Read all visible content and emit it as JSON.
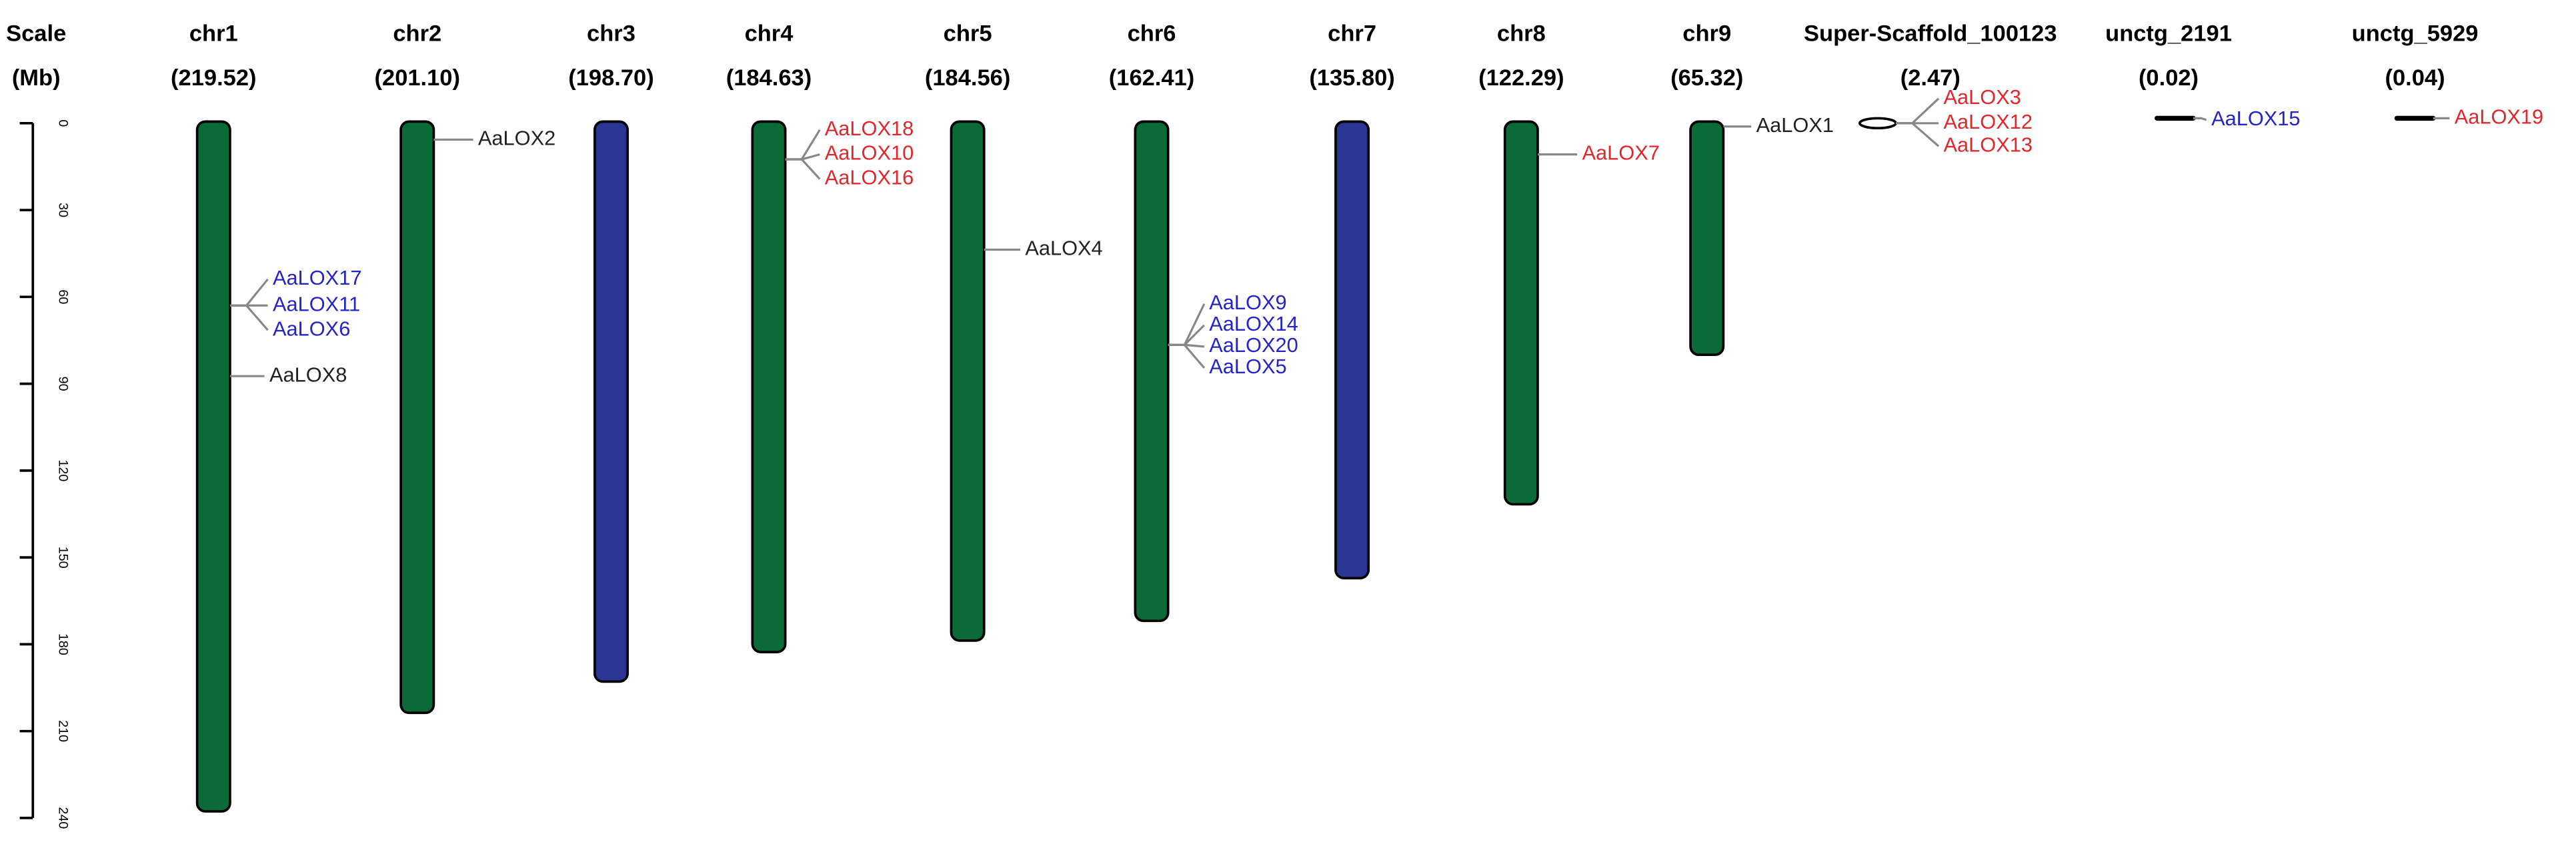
{
  "scale": {
    "title": "Scale",
    "unit": "(Mb)",
    "ticks": [
      0,
      30,
      60,
      90,
      120,
      150,
      180,
      210,
      240
    ]
  },
  "chromosomes": [
    {
      "name": "chr1",
      "length": "(219.52)",
      "color": "#0b6b38",
      "genes": [
        {
          "label": "AaLOX17",
          "color": "#2424c8"
        },
        {
          "label": "AaLOX11",
          "color": "#2424c8"
        },
        {
          "label": "AaLOX6",
          "color": "#2424c8"
        },
        {
          "label": "AaLOX8",
          "color": "#222222"
        }
      ]
    },
    {
      "name": "chr2",
      "length": "(201.10)",
      "color": "#0b6b38",
      "genes": [
        {
          "label": "AaLOX2",
          "color": "#222222"
        }
      ]
    },
    {
      "name": "chr3",
      "length": "(198.70)",
      "color": "#2b3593",
      "genes": []
    },
    {
      "name": "chr4",
      "length": "(184.63)",
      "color": "#0b6b38",
      "genes": [
        {
          "label": "AaLOX18",
          "color": "#e3262b"
        },
        {
          "label": "AaLOX10",
          "color": "#e3262b"
        },
        {
          "label": "AaLOX16",
          "color": "#e3262b"
        }
      ]
    },
    {
      "name": "chr5",
      "length": "(184.56)",
      "color": "#0b6b38",
      "genes": [
        {
          "label": "AaLOX4",
          "color": "#222222"
        }
      ]
    },
    {
      "name": "chr6",
      "length": "(162.41)",
      "color": "#0b6b38",
      "genes": [
        {
          "label": "AaLOX9",
          "color": "#2424c8"
        },
        {
          "label": "AaLOX14",
          "color": "#2424c8"
        },
        {
          "label": "AaLOX20",
          "color": "#2424c8"
        },
        {
          "label": "AaLOX5",
          "color": "#2424c8"
        }
      ]
    },
    {
      "name": "chr7",
      "length": "(135.80)",
      "color": "#2b3593",
      "genes": []
    },
    {
      "name": "chr8",
      "length": "(122.29)",
      "color": "#0b6b38",
      "genes": [
        {
          "label": "AaLOX7",
          "color": "#e3262b"
        }
      ]
    },
    {
      "name": "chr9",
      "length": "(65.32)",
      "color": "#0b6b38",
      "genes": [
        {
          "label": "AaLOX1",
          "color": "#222222"
        }
      ]
    },
    {
      "name": "Super-Scaffold_100123",
      "length": "(2.47)",
      "color": "#ffffff",
      "genes": [
        {
          "label": "AaLOX3",
          "color": "#e3262b"
        },
        {
          "label": "AaLOX12",
          "color": "#e3262b"
        },
        {
          "label": "AaLOX13",
          "color": "#e3262b"
        }
      ]
    },
    {
      "name": "unctg_2191",
      "length": "(0.02)",
      "color": "#000000",
      "genes": [
        {
          "label": "AaLOX15",
          "color": "#2424c8"
        }
      ]
    },
    {
      "name": "unctg_5929",
      "length": "(0.04)",
      "color": "#000000",
      "genes": [
        {
          "label": "AaLOX19",
          "color": "#e3262b"
        }
      ]
    }
  ]
}
